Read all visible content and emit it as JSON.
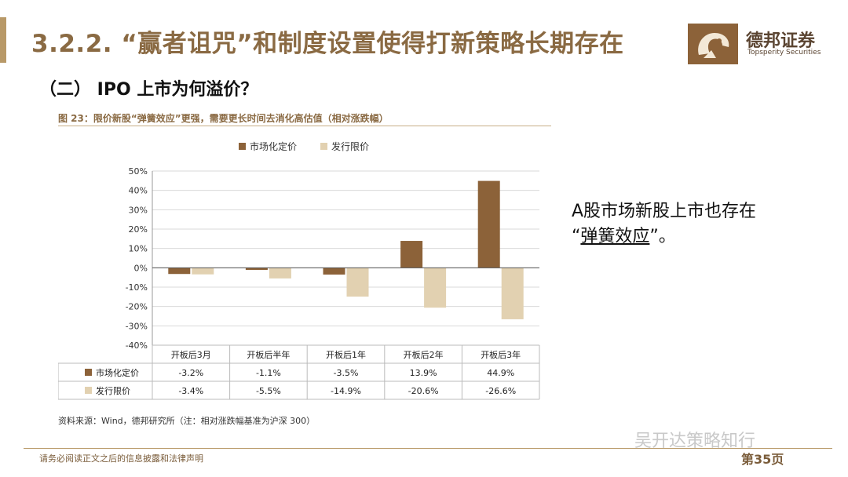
{
  "header": {
    "title": "3.2.2. “赢者诅咒”和制度设置使得打新策略长期存在",
    "brand_name": "德邦证券",
    "brand_en": "Topsperity Securities"
  },
  "subtitle": "（二） IPO 上市为何溢价？",
  "figure_caption": "图 23：限价新股“弹簧效应”更强，需要更长时间去消化高估值（相对涨跌幅）",
  "source_note": "资料来源：Wind，德邦研究所（注：相对涨跌幅基准为沪深 300）",
  "side_text": {
    "line1": "A股市场新股上市也存在",
    "open_quote": "“",
    "highlight": "弹簧效应",
    "close_quote": "”。"
  },
  "footer": {
    "disclaimer": "请务必阅读正文之后的信息披露和法律声明",
    "wechat": "吴开达策略知行",
    "page": "第35页"
  },
  "colors": {
    "market": "#8c6239",
    "limit": "#e2d1b1",
    "accent": "#8a6a43"
  },
  "chart_data": {
    "type": "bar",
    "categories": [
      "开板后3月",
      "开板后半年",
      "开板后1年",
      "开板后2年",
      "开板后3年"
    ],
    "series": [
      {
        "name": "市场化定价",
        "values": [
          -3.2,
          -1.1,
          -3.5,
          13.9,
          44.9
        ],
        "labels": [
          "-3.2%",
          "-1.1%",
          "-3.5%",
          "13.9%",
          "44.9%"
        ]
      },
      {
        "name": "发行限价",
        "values": [
          -3.4,
          -5.5,
          -14.9,
          -20.6,
          -26.6
        ],
        "labels": [
          "-3.4%",
          "-5.5%",
          "-14.9%",
          "-20.6%",
          "-26.6%"
        ]
      }
    ],
    "yticks": [
      "50%",
      "40%",
      "30%",
      "20%",
      "10%",
      "0%",
      "-10%",
      "-20%",
      "-30%",
      "-40%"
    ],
    "ylim": [
      -40,
      50
    ],
    "grid": "horizontal",
    "legend": "top-center",
    "data_table": true
  }
}
